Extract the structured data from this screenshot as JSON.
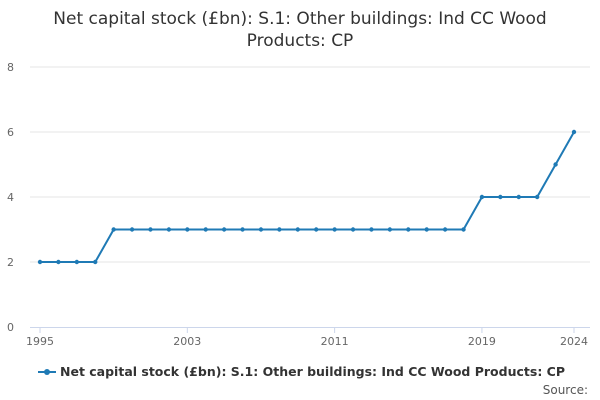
{
  "chart_data": {
    "type": "line",
    "title": "Net capital stock (£bn): S.1: Other buildings: Ind CC Wood Products: CP",
    "xlabel": "",
    "ylabel": "",
    "x": [
      1995,
      1996,
      1997,
      1998,
      1999,
      2000,
      2001,
      2002,
      2003,
      2004,
      2005,
      2006,
      2007,
      2008,
      2009,
      2010,
      2011,
      2012,
      2013,
      2014,
      2015,
      2016,
      2017,
      2018,
      2019,
      2020,
      2021,
      2022,
      2023,
      2024
    ],
    "series": [
      {
        "name": "Net capital stock (£bn): S.1: Other buildings: Ind CC Wood Products: CP",
        "values": [
          2,
          2,
          2,
          2,
          3,
          3,
          3,
          3,
          3,
          3,
          3,
          3,
          3,
          3,
          3,
          3,
          3,
          3,
          3,
          3,
          3,
          3,
          3,
          3,
          4,
          4,
          4,
          4,
          5,
          6
        ],
        "color": "#1f7ab5"
      }
    ],
    "xlim": [
      1995,
      2024
    ],
    "ylim": [
      0,
      8
    ],
    "y_ticks": [
      0,
      2,
      4,
      6,
      8
    ],
    "x_ticks": [
      1995,
      2003,
      2011,
      2019,
      2024
    ],
    "grid": true,
    "legend": "bottom-left"
  },
  "source_label": "Source:"
}
